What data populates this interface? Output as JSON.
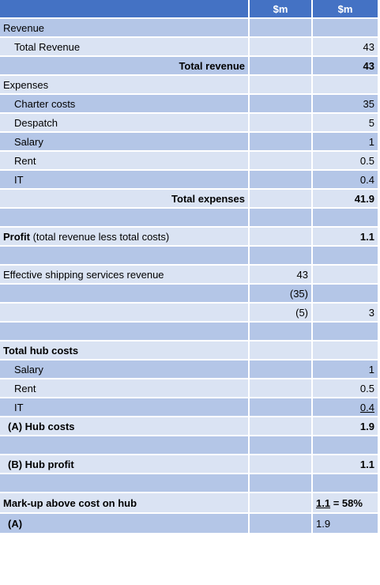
{
  "header": {
    "col2": "$m",
    "col3": "$m"
  },
  "rows": {
    "revenue_heading": "Revenue",
    "total_revenue_item": {
      "label": "Total Revenue",
      "value": "43"
    },
    "total_revenue": {
      "label": "Total revenue",
      "value": "43"
    },
    "expenses_heading": "Expenses",
    "charter_costs": {
      "label": "Charter costs",
      "value": "35"
    },
    "despatch": {
      "label": "Despatch",
      "value": "5"
    },
    "salary": {
      "label": "Salary",
      "value": "1"
    },
    "rent": {
      "label": "Rent",
      "value": "0.5"
    },
    "it": {
      "label": "IT",
      "value": "0.4"
    },
    "total_expenses": {
      "label": "Total expenses",
      "value": "41.9"
    },
    "profit": {
      "label_bold": "Profit",
      "label_rest": " (total revenue less total costs)",
      "value": "1.1"
    },
    "effective_revenue": {
      "label": "Effective shipping services revenue",
      "value": "43"
    },
    "less_charter": {
      "value": "(35)"
    },
    "less_despatch": {
      "value": "(5)",
      "result": "3"
    },
    "total_hub_costs_heading": "Total hub costs",
    "hub_salary": {
      "label": "Salary",
      "value": "1"
    },
    "hub_rent": {
      "label": "Rent",
      "value": "0.5"
    },
    "hub_it": {
      "label": "IT",
      "value": "0.4"
    },
    "hub_costs": {
      "label": "(A) Hub costs",
      "value": "1.9"
    },
    "hub_profit": {
      "label": "(B) Hub profit",
      "value": "1.1"
    },
    "markup": {
      "label": "Mark-up above cost on hub",
      "numerator": "1.1",
      "result": " = 58%"
    },
    "markup_a": {
      "label": "(A)",
      "denominator": "1.9"
    }
  }
}
